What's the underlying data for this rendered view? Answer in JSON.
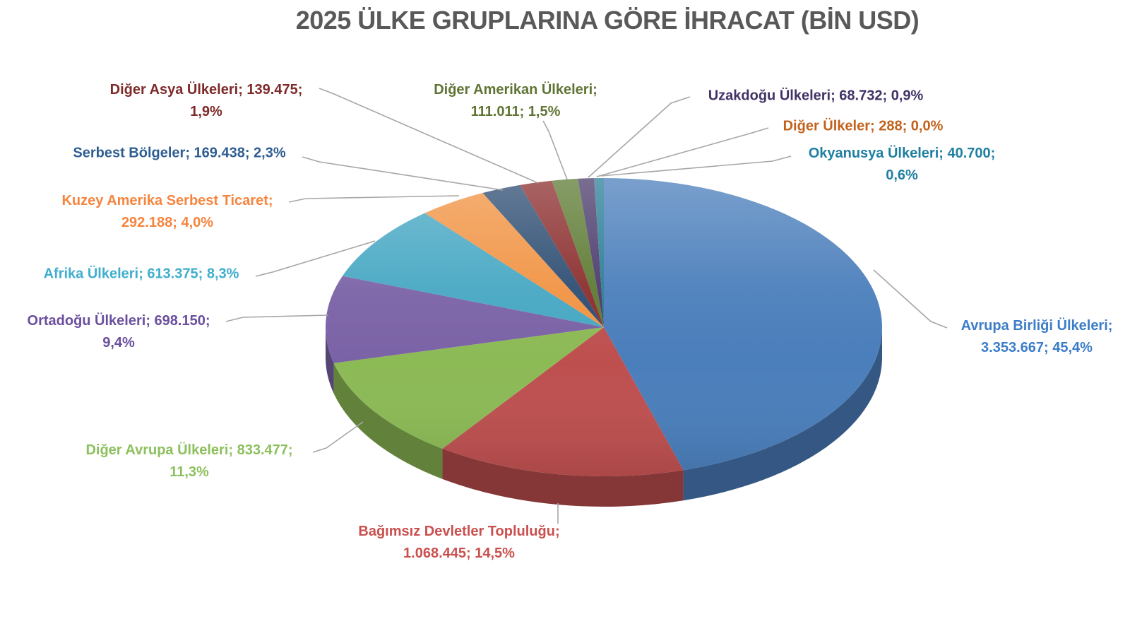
{
  "chart_data": {
    "type": "pie",
    "style": "3d",
    "title": "2025 ÜLKE GRUPLARINA GÖRE İHRACAT (BİN USD)",
    "value_unit": "BİN USD",
    "label_format": "kategori; değer; yüzde",
    "legend": "none",
    "colors": {
      "title_text": "#595959",
      "leader_line": "#A6A6A6",
      "background": "#FFFFFF"
    },
    "slices": [
      {
        "category": "Avrupa Birliği Ülkeleri",
        "value": 3353667,
        "value_text": "3.353.667",
        "percent": 45.4,
        "percent_text": "45,4%",
        "color": "#4A7EBB",
        "label_color": "#3C7DC8",
        "label_lines": [
          "Avrupa Birliği Ülkeleri;",
          "3.353.667; 45,4%"
        ]
      },
      {
        "category": "Bağımsız Devletler Topluluğu",
        "value": 1068445,
        "value_text": "1.068.445",
        "percent": 14.5,
        "percent_text": "14,5%",
        "color": "#BE4F4F",
        "label_color": "#C9504E",
        "label_lines": [
          "Bağımsız Devletler Topluluğu;",
          "1.068.445; 14,5%"
        ]
      },
      {
        "category": "Diğer Avrupa Ülkeleri",
        "value": 833477,
        "value_text": "833.477",
        "percent": 11.3,
        "percent_text": "11,3%",
        "color": "#8CBA55",
        "label_color": "#8DC05E",
        "label_lines": [
          "Diğer Avrupa Ülkeleri; 833.477;",
          "11,3%"
        ]
      },
      {
        "category": "Ortadoğu Ülkeleri",
        "value": 698150,
        "value_text": "698.150",
        "percent": 9.4,
        "percent_text": "9,4%",
        "color": "#7A62A6",
        "label_color": "#6A4F9E",
        "label_lines": [
          "Ortadoğu Ülkeleri; 698.150;",
          "9,4%"
        ]
      },
      {
        "category": "Afrika Ülkeleri",
        "value": 613375,
        "value_text": "613.375",
        "percent": 8.3,
        "percent_text": "8,3%",
        "color": "#46A7C3",
        "label_color": "#3FAECD",
        "label_lines": [
          "Afrika Ülkeleri; 613.375; 8,3%"
        ]
      },
      {
        "category": "Kuzey Amerika Serbest Ticaret",
        "value": 292188,
        "value_text": "292.188",
        "percent": 4.0,
        "percent_text": "4,0%",
        "color": "#F19343",
        "label_color": "#F5853F",
        "label_lines": [
          "Kuzey Amerika Serbest Ticaret;",
          "292.188; 4,0%"
        ]
      },
      {
        "category": "Serbest Bölgeler",
        "value": 169438,
        "value_text": "169.438",
        "percent": 2.3,
        "percent_text": "2,3%",
        "color": "#2D4D72",
        "label_color": "#2E5D92",
        "label_lines": [
          "Serbest Bölgeler; 169.438; 2,3%"
        ]
      },
      {
        "category": "Diğer Asya Ülkeleri",
        "value": 139475,
        "value_text": "139.475",
        "percent": 1.9,
        "percent_text": "1,9%",
        "color": "#8B2D2D",
        "label_color": "#7E2A29",
        "label_lines": [
          "Diğer Asya Ülkeleri; 139.475;",
          "1,9%"
        ]
      },
      {
        "category": "Diğer Amerikan Ülkeleri",
        "value": 111011,
        "value_text": "111.011",
        "percent": 1.5,
        "percent_text": "1,5%",
        "color": "#5D7A33",
        "label_color": "#5F7434",
        "label_lines": [
          "Diğer Amerikan Ülkeleri;",
          "111.011; 1,5%"
        ]
      },
      {
        "category": "Uzakdoğu Ülkeleri",
        "value": 68732,
        "value_text": "68.732",
        "percent": 0.9,
        "percent_text": "0,9%",
        "color": "#4A3A6B",
        "label_color": "#413366",
        "label_lines": [
          "Uzakdoğu Ülkeleri; 68.732; 0,9%"
        ]
      },
      {
        "category": "Diğer Ülkeler",
        "value": 288,
        "value_text": "288",
        "percent": 0.0,
        "percent_text": "0,0%",
        "color": "#B05A1E",
        "label_color": "#C2611B",
        "label_lines": [
          "Diğer Ülkeler; 288; 0,0%"
        ]
      },
      {
        "category": "Okyanusya Ülkeleri",
        "value": 40700,
        "value_text": "40.700",
        "percent": 0.6,
        "percent_text": "0,6%",
        "color": "#2A7D96",
        "label_color": "#1F7FA0",
        "label_lines": [
          "Okyanusya Ülkeleri; 40.700;",
          "0,6%"
        ]
      }
    ]
  }
}
